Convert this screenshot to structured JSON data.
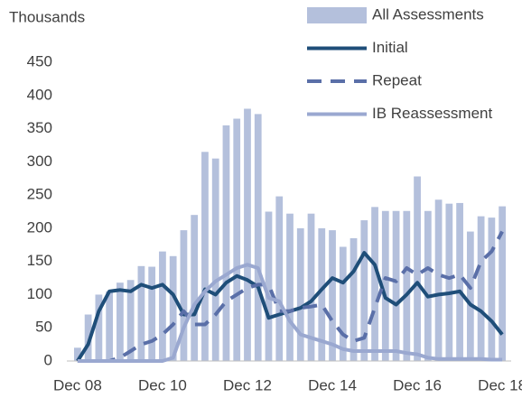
{
  "chart_data": {
    "type": "bar-line",
    "y_label": "Thousands",
    "categories": [
      "Dec 08",
      null,
      null,
      null,
      null,
      null,
      null,
      null,
      "Dec 10",
      null,
      null,
      null,
      null,
      null,
      null,
      null,
      "Dec 12",
      null,
      null,
      null,
      null,
      null,
      null,
      null,
      "Dec 14",
      null,
      null,
      null,
      null,
      null,
      null,
      null,
      "Dec 16",
      null,
      null,
      null,
      null,
      null,
      null,
      null,
      "Dec 18"
    ],
    "ylim": [
      0,
      450
    ],
    "yticks": [
      0,
      50,
      100,
      150,
      200,
      250,
      300,
      350,
      400,
      450
    ],
    "series": [
      {
        "name": "All Assessments",
        "type": "bar",
        "color": "#b4c0dc",
        "values": [
          20,
          70,
          100,
          105,
          118,
          122,
          143,
          142,
          165,
          158,
          197,
          220,
          315,
          305,
          355,
          365,
          380,
          372,
          225,
          248,
          222,
          200,
          222,
          200,
          197,
          172,
          185,
          212,
          232,
          226,
          226,
          226,
          278,
          226,
          243,
          237,
          238,
          195,
          218,
          216,
          233
        ]
      },
      {
        "name": "Initial",
        "type": "line",
        "color": "#1f4e79",
        "dashed": false,
        "values": [
          0,
          25,
          75,
          105,
          107,
          105,
          115,
          110,
          115,
          100,
          70,
          70,
          108,
          100,
          118,
          128,
          122,
          112,
          65,
          70,
          75,
          80,
          90,
          108,
          125,
          118,
          135,
          163,
          145,
          95,
          85,
          100,
          118,
          97,
          100,
          102,
          105,
          85,
          75,
          60,
          40
        ]
      },
      {
        "name": "Repeat",
        "type": "line",
        "color": "#5a6fa8",
        "dashed": true,
        "values": [
          0,
          0,
          0,
          0,
          5,
          15,
          25,
          30,
          40,
          55,
          75,
          55,
          55,
          70,
          90,
          100,
          110,
          115,
          115,
          75,
          75,
          80,
          82,
          85,
          60,
          40,
          30,
          35,
          80,
          125,
          120,
          140,
          130,
          140,
          130,
          125,
          130,
          110,
          150,
          165,
          195
        ]
      },
      {
        "name": "IB Reassessment",
        "type": "line",
        "color": "#9aa8d0",
        "dashed": false,
        "values": [
          0,
          0,
          0,
          0,
          0,
          0,
          0,
          0,
          0,
          5,
          50,
          85,
          105,
          120,
          130,
          140,
          145,
          140,
          95,
          90,
          60,
          40,
          35,
          30,
          25,
          18,
          15,
          15,
          15,
          15,
          15,
          12,
          10,
          5,
          3,
          3,
          3,
          3,
          3,
          2,
          2
        ]
      }
    ]
  }
}
